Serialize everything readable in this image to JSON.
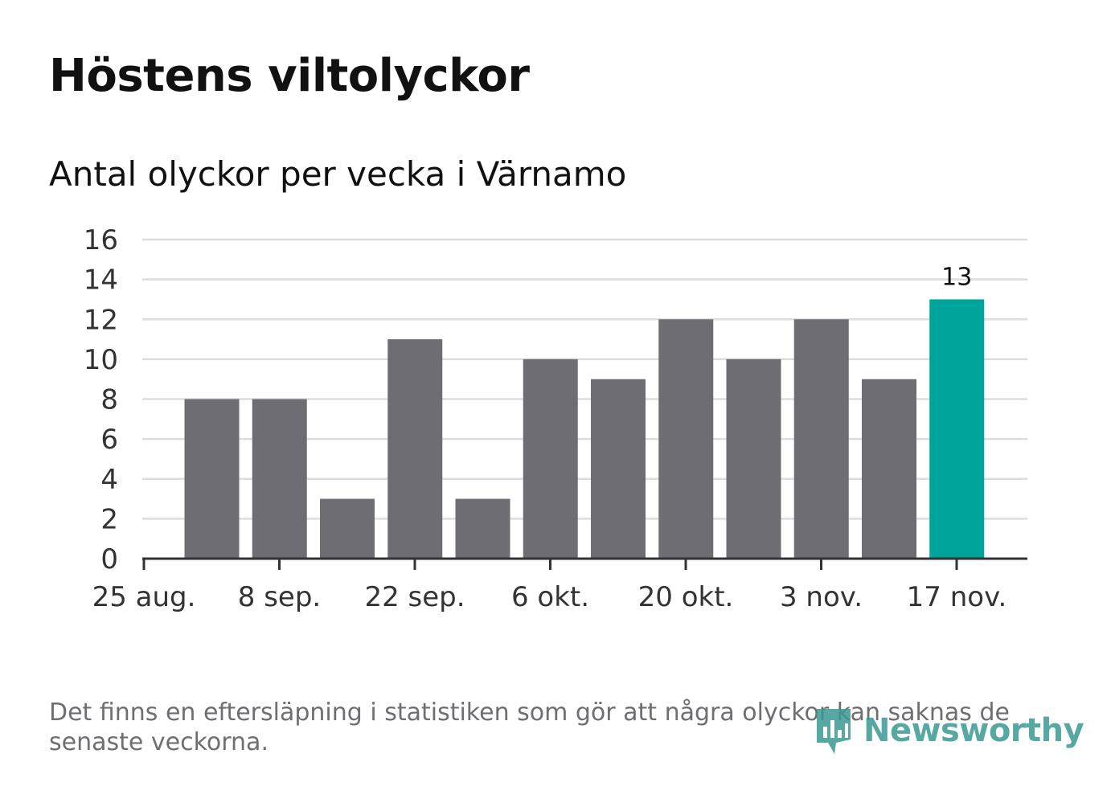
{
  "header": {
    "title": "Höstens viltolyckor",
    "subtitle": "Antal olyckor per vecka i Värnamo"
  },
  "chart_data": {
    "type": "bar",
    "title": "Höstens viltolyckor",
    "subtitle": "Antal olyckor per vecka i Värnamo",
    "x_tick_labels": [
      "25 aug.",
      "8 sep.",
      "22 sep.",
      "6 okt.",
      "20 okt.",
      "3 nov.",
      "17 nov."
    ],
    "values": [
      8,
      8,
      3,
      11,
      3,
      10,
      9,
      12,
      10,
      12,
      9,
      13
    ],
    "highlight_index": 11,
    "highlight_label": "13",
    "ylim": [
      0,
      16
    ],
    "y_ticks": [
      0,
      2,
      4,
      6,
      8,
      10,
      12,
      14,
      16
    ],
    "grid": true,
    "colors": {
      "bar": "#6e6d73",
      "highlight": "#00a49a",
      "grid": "#dddddd",
      "axis": "#333333"
    }
  },
  "footer": {
    "note": "Det finns en eftersläpning i statistiken som gör att några olyckor kan saknas de senaste veckorna.",
    "logo_text": "Newsworthy",
    "logo_icon": "bar-chart-badge-icon"
  }
}
